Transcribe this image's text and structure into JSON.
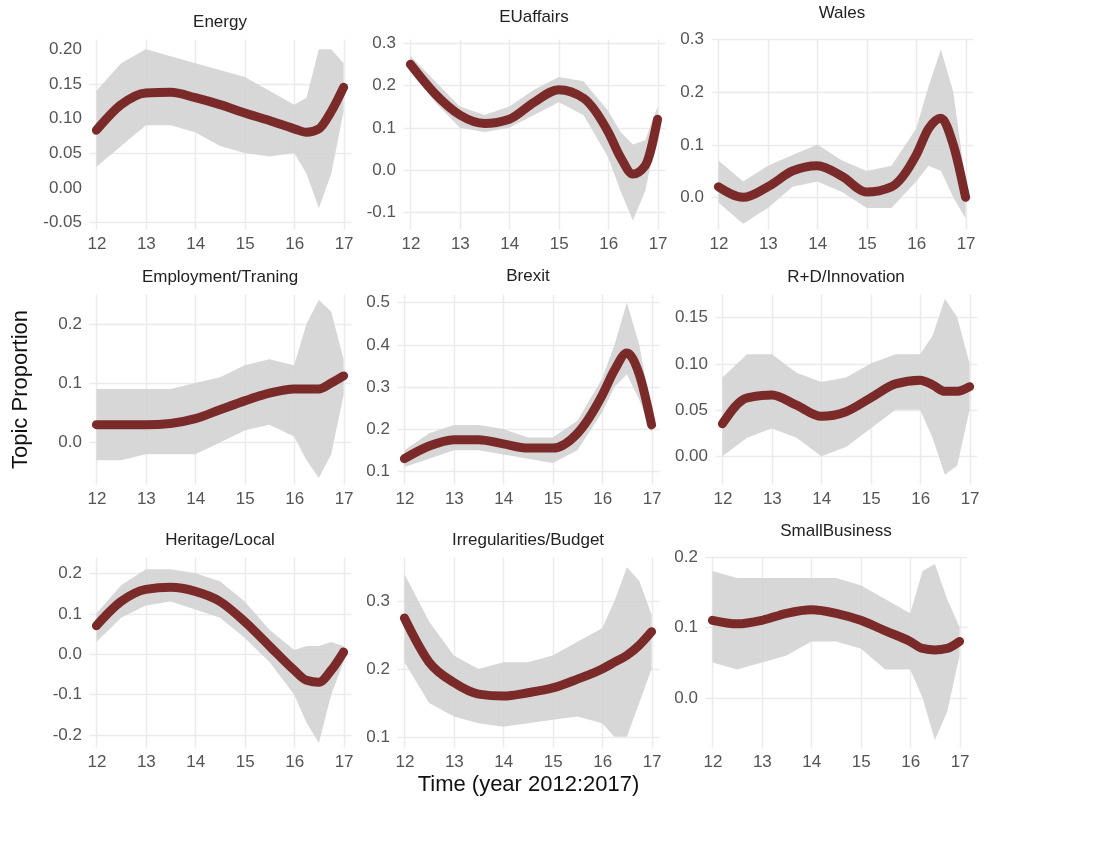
{
  "chart_data": [
    {
      "type": "line",
      "title": "Energy",
      "x": [
        12,
        12.5,
        13,
        13.5,
        14,
        14.5,
        15,
        15.5,
        16,
        16.25,
        16.5,
        16.75,
        17
      ],
      "xlim": [
        11.85,
        17.15
      ],
      "xticks": [
        12,
        13,
        14,
        15,
        16,
        17
      ],
      "ylim": [
        -0.06,
        0.215
      ],
      "yticks": [
        {
          "value": -0.05,
          "label": "-0.05"
        },
        {
          "value": 0,
          "label": "0.00"
        },
        {
          "value": 0.05,
          "label": "0.05"
        },
        {
          "value": 0.1,
          "label": "0.10"
        },
        {
          "value": 0.15,
          "label": "0.15"
        },
        {
          "value": 0.2,
          "label": "0.20"
        }
      ],
      "grid": true,
      "series": [
        {
          "color": "#7b2a2a",
          "values": [
            0.083,
            0.12,
            0.137,
            0.138,
            0.13,
            0.12,
            0.108,
            0.097,
            0.085,
            0.08,
            0.085,
            0.11,
            0.145
          ],
          "lower": [
            0.03,
            0.06,
            0.09,
            0.09,
            0.08,
            0.06,
            0.05,
            0.045,
            0.05,
            0.02,
            -0.03,
            0.02,
            0.11
          ],
          "upper": [
            0.14,
            0.18,
            0.2,
            0.19,
            0.18,
            0.17,
            0.16,
            0.14,
            0.12,
            0.13,
            0.2,
            0.2,
            0.18
          ]
        }
      ]
    },
    {
      "type": "line",
      "title": "EUaffairs",
      "x": [
        12,
        12.5,
        13,
        13.5,
        14,
        14.5,
        15,
        15.5,
        16,
        16.25,
        16.5,
        16.75,
        17
      ],
      "xlim": [
        11.85,
        17.15
      ],
      "xticks": [
        12,
        13,
        14,
        15,
        16,
        17
      ],
      "ylim": [
        -0.14,
        0.31
      ],
      "yticks": [
        {
          "value": -0.1,
          "label": "-0.1"
        },
        {
          "value": 0,
          "label": "0.0"
        },
        0.1,
        0.2,
        0.3
      ],
      "grid": true,
      "series": [
        {
          "color": "#7b2a2a",
          "values": [
            0.25,
            0.18,
            0.13,
            0.11,
            0.12,
            0.16,
            0.19,
            0.17,
            0.09,
            0.03,
            -0.01,
            0.01,
            0.12
          ],
          "lower": [
            0.24,
            0.16,
            0.1,
            0.09,
            0.1,
            0.13,
            0.16,
            0.13,
            0.03,
            -0.05,
            -0.12,
            -0.05,
            0.09
          ],
          "upper": [
            0.27,
            0.21,
            0.15,
            0.13,
            0.15,
            0.19,
            0.22,
            0.21,
            0.14,
            0.09,
            0.06,
            0.07,
            0.15
          ]
        }
      ]
    },
    {
      "type": "line",
      "title": "Wales",
      "x": [
        12,
        12.5,
        13,
        13.5,
        14,
        14.5,
        15,
        15.5,
        16,
        16.25,
        16.5,
        16.75,
        17
      ],
      "xlim": [
        11.85,
        17.15
      ],
      "xticks": [
        12,
        13,
        14,
        15,
        16,
        17
      ],
      "ylim": [
        -0.06,
        0.3
      ],
      "yticks": [
        {
          "value": 0,
          "label": "0.0"
        },
        0.1,
        0.2,
        0.3
      ],
      "grid": true,
      "series": [
        {
          "color": "#7b2a2a",
          "values": [
            0.02,
            0.0,
            0.02,
            0.05,
            0.06,
            0.04,
            0.01,
            0.02,
            0.08,
            0.13,
            0.15,
            0.1,
            0.0
          ],
          "lower": [
            -0.01,
            -0.05,
            -0.02,
            0.02,
            0.03,
            0.01,
            -0.02,
            -0.02,
            0.03,
            0.06,
            0.05,
            0.0,
            -0.04
          ],
          "upper": [
            0.07,
            0.03,
            0.06,
            0.08,
            0.1,
            0.07,
            0.05,
            0.06,
            0.13,
            0.21,
            0.28,
            0.2,
            0.03
          ]
        }
      ]
    },
    {
      "type": "line",
      "title": "Employment/Traning",
      "ylabel": "Topic Proportion",
      "x": [
        12,
        12.5,
        13,
        13.5,
        14,
        14.5,
        15,
        15.5,
        16,
        16.25,
        16.5,
        16.75,
        17
      ],
      "xlim": [
        11.85,
        17.15
      ],
      "xticks": [
        12,
        13,
        14,
        15,
        16,
        17
      ],
      "ylim": [
        -0.07,
        0.25
      ],
      "yticks": [
        {
          "value": 0,
          "label": "0.0"
        },
        0.1,
        0.2
      ],
      "grid": true,
      "series": [
        {
          "color": "#7b2a2a",
          "values": [
            0.03,
            0.03,
            0.03,
            0.032,
            0.04,
            0.055,
            0.07,
            0.083,
            0.09,
            0.09,
            0.09,
            0.1,
            0.112
          ],
          "lower": [
            -0.03,
            -0.03,
            -0.02,
            -0.02,
            -0.02,
            0.0,
            0.02,
            0.03,
            0.01,
            -0.03,
            -0.06,
            -0.02,
            0.08
          ],
          "upper": [
            0.09,
            0.09,
            0.09,
            0.09,
            0.1,
            0.11,
            0.13,
            0.14,
            0.13,
            0.2,
            0.24,
            0.22,
            0.14
          ]
        }
      ]
    },
    {
      "type": "line",
      "title": "Brexit",
      "x": [
        12,
        12.5,
        13,
        13.5,
        14,
        14.5,
        15,
        15.5,
        16,
        16.25,
        16.5,
        16.75,
        17
      ],
      "xlim": [
        11.85,
        17.15
      ],
      "xticks": [
        12,
        13,
        14,
        15,
        16,
        17
      ],
      "ylim": [
        0.07,
        0.52
      ],
      "yticks": [
        0.1,
        0.2,
        0.3,
        0.4,
        0.5
      ],
      "grid": true,
      "series": [
        {
          "color": "#7b2a2a",
          "values": [
            0.13,
            0.16,
            0.175,
            0.175,
            0.165,
            0.155,
            0.155,
            0.19,
            0.28,
            0.34,
            0.38,
            0.33,
            0.21
          ],
          "lower": [
            0.11,
            0.13,
            0.15,
            0.15,
            0.14,
            0.13,
            0.12,
            0.15,
            0.24,
            0.3,
            0.33,
            0.27,
            0.19
          ],
          "upper": [
            0.15,
            0.19,
            0.21,
            0.21,
            0.2,
            0.18,
            0.18,
            0.22,
            0.32,
            0.4,
            0.5,
            0.4,
            0.24
          ]
        }
      ]
    },
    {
      "type": "line",
      "title": "R+D/Innovation",
      "x": [
        12,
        12.5,
        13,
        13.5,
        14,
        14.5,
        15,
        15.5,
        16,
        16.25,
        16.5,
        16.75,
        17
      ],
      "xlim": [
        11.85,
        17.15
      ],
      "xticks": [
        12,
        13,
        14,
        15,
        16,
        17
      ],
      "ylim": [
        -0.03,
        0.175
      ],
      "yticks": [
        {
          "value": 0,
          "label": "0.00"
        },
        0.05,
        {
          "value": 0.1,
          "label": "0.10"
        },
        0.15
      ],
      "grid": true,
      "series": [
        {
          "color": "#7b2a2a",
          "values": [
            0.035,
            0.063,
            0.066,
            0.055,
            0.043,
            0.048,
            0.063,
            0.078,
            0.082,
            0.077,
            0.07,
            0.07,
            0.075
          ],
          "lower": [
            0.0,
            0.02,
            0.03,
            0.02,
            0.0,
            0.01,
            0.03,
            0.05,
            0.05,
            0.02,
            -0.02,
            -0.01,
            0.05
          ],
          "upper": [
            0.085,
            0.11,
            0.11,
            0.09,
            0.08,
            0.085,
            0.1,
            0.11,
            0.11,
            0.13,
            0.17,
            0.15,
            0.1
          ]
        }
      ]
    },
    {
      "type": "line",
      "title": "Heritage/Local",
      "x": [
        12,
        12.5,
        13,
        13.5,
        14,
        14.5,
        15,
        15.5,
        16,
        16.25,
        16.5,
        16.75,
        17
      ],
      "xlim": [
        11.85,
        17.15
      ],
      "xticks": [
        12,
        13,
        14,
        15,
        16,
        17
      ],
      "ylim": [
        -0.23,
        0.24
      ],
      "yticks": [
        {
          "value": -0.2,
          "label": "-0.2"
        },
        {
          "value": -0.1,
          "label": "-0.1"
        },
        {
          "value": 0,
          "label": "0.0"
        },
        0.1,
        0.2
      ],
      "grid": true,
      "series": [
        {
          "color": "#7b2a2a",
          "values": [
            0.07,
            0.13,
            0.16,
            0.165,
            0.155,
            0.13,
            0.08,
            0.02,
            -0.04,
            -0.065,
            -0.07,
            -0.04,
            0.005
          ],
          "lower": [
            0.03,
            0.09,
            0.12,
            0.13,
            0.11,
            0.09,
            0.04,
            -0.02,
            -0.1,
            -0.17,
            -0.22,
            -0.1,
            -0.02
          ],
          "upper": [
            0.1,
            0.17,
            0.21,
            0.21,
            0.2,
            0.18,
            0.13,
            0.06,
            0.01,
            0.02,
            0.02,
            0.03,
            0.02
          ]
        }
      ]
    },
    {
      "type": "line",
      "title": "Irregularities/Budget",
      "xlabel": "Time (year 2012:2017)",
      "x": [
        12,
        12.5,
        13,
        13.5,
        14,
        14.5,
        15,
        15.5,
        16,
        16.25,
        16.5,
        16.75,
        17
      ],
      "xlim": [
        11.85,
        17.15
      ],
      "xticks": [
        12,
        13,
        14,
        15,
        16,
        17
      ],
      "ylim": [
        0.085,
        0.365
      ],
      "yticks": [
        0.1,
        0.2,
        0.3
      ],
      "grid": true,
      "series": [
        {
          "color": "#7b2a2a",
          "values": [
            0.275,
            0.21,
            0.18,
            0.163,
            0.16,
            0.165,
            0.172,
            0.185,
            0.2,
            0.21,
            0.22,
            0.235,
            0.255
          ],
          "lower": [
            0.21,
            0.15,
            0.13,
            0.12,
            0.115,
            0.12,
            0.125,
            0.13,
            0.12,
            0.1,
            0.1,
            0.15,
            0.2
          ],
          "upper": [
            0.34,
            0.27,
            0.22,
            0.2,
            0.21,
            0.21,
            0.22,
            0.24,
            0.26,
            0.3,
            0.35,
            0.33,
            0.28
          ]
        }
      ]
    },
    {
      "type": "line",
      "title": "SmallBusiness",
      "x": [
        12,
        12.5,
        13,
        13.5,
        14,
        14.5,
        15,
        15.5,
        16,
        16.25,
        16.5,
        16.75,
        17
      ],
      "xlim": [
        11.85,
        17.15
      ],
      "xticks": [
        12,
        13,
        14,
        15,
        16,
        17
      ],
      "ylim": [
        -0.07,
        0.2
      ],
      "yticks": [
        {
          "value": 0,
          "label": "0.0"
        },
        0.1,
        0.2
      ],
      "grid": true,
      "series": [
        {
          "color": "#7b2a2a",
          "values": [
            0.11,
            0.105,
            0.11,
            0.12,
            0.125,
            0.12,
            0.11,
            0.095,
            0.08,
            0.07,
            0.068,
            0.07,
            0.08
          ],
          "lower": [
            0.05,
            0.04,
            0.05,
            0.06,
            0.08,
            0.08,
            0.07,
            0.04,
            0.04,
            0.0,
            -0.06,
            -0.02,
            0.06
          ],
          "upper": [
            0.18,
            0.17,
            0.17,
            0.17,
            0.17,
            0.17,
            0.16,
            0.14,
            0.12,
            0.18,
            0.19,
            0.14,
            0.1
          ]
        }
      ]
    }
  ]
}
